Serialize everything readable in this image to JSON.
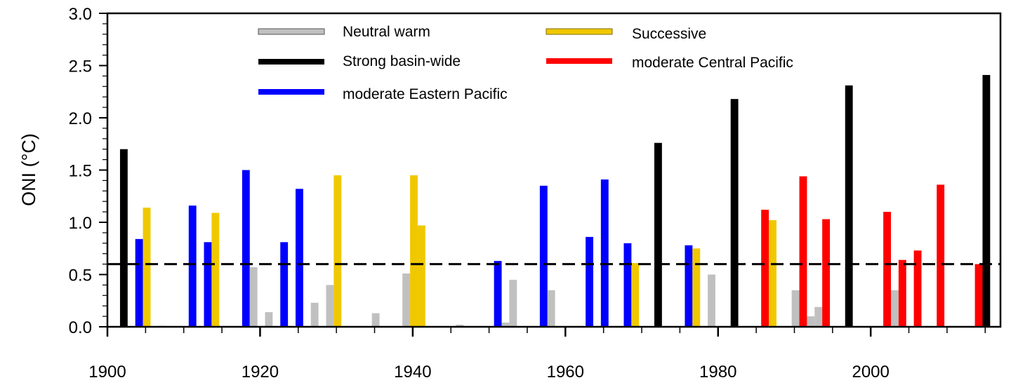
{
  "chart_data": {
    "type": "bar",
    "title": "",
    "xlabel": "",
    "ylabel": "ONI (°C)",
    "xlim": [
      1900,
      2017
    ],
    "ylim": [
      0,
      3.0
    ],
    "xticks": [
      1900,
      1920,
      1940,
      1960,
      1980,
      2000
    ],
    "yticks": [
      "0.0",
      "0.5",
      "1.0",
      "1.5",
      "2.0",
      "2.5",
      "3.0"
    ],
    "grid": false,
    "legend_placement": "top",
    "threshold": {
      "value": 0.6,
      "style": "dashed",
      "color": "#000000"
    },
    "categories": {
      "neutral": {
        "name": "Neutral warm",
        "color": "#c0c0c0"
      },
      "strong": {
        "name": "Strong basin-wide",
        "color": "#000000"
      },
      "ep": {
        "name": "moderate Eastern Pacific",
        "color": "#0000ff"
      },
      "successive": {
        "name": "Successive",
        "color": "#f0c800"
      },
      "cp": {
        "name": "moderate Central Pacific",
        "color": "#ff0000"
      }
    },
    "bars": [
      {
        "year": 1902,
        "value": 1.7,
        "cat": "strong"
      },
      {
        "year": 1904,
        "value": 0.84,
        "cat": "ep"
      },
      {
        "year": 1905,
        "value": 1.14,
        "cat": "successive"
      },
      {
        "year": 1907,
        "value": 0.01,
        "cat": "neutral"
      },
      {
        "year": 1911,
        "value": 1.16,
        "cat": "ep"
      },
      {
        "year": 1913,
        "value": 0.81,
        "cat": "ep"
      },
      {
        "year": 1914,
        "value": 1.09,
        "cat": "successive"
      },
      {
        "year": 1918,
        "value": 1.5,
        "cat": "ep"
      },
      {
        "year": 1919,
        "value": 0.57,
        "cat": "neutral"
      },
      {
        "year": 1921,
        "value": 0.14,
        "cat": "neutral"
      },
      {
        "year": 1923,
        "value": 0.81,
        "cat": "ep"
      },
      {
        "year": 1925,
        "value": 1.32,
        "cat": "ep"
      },
      {
        "year": 1927,
        "value": 0.23,
        "cat": "neutral"
      },
      {
        "year": 1929,
        "value": 0.4,
        "cat": "neutral"
      },
      {
        "year": 1930,
        "value": 1.45,
        "cat": "successive"
      },
      {
        "year": 1935,
        "value": 0.13,
        "cat": "neutral"
      },
      {
        "year": 1939,
        "value": 0.51,
        "cat": "neutral"
      },
      {
        "year": 1940,
        "value": 1.45,
        "cat": "successive"
      },
      {
        "year": 1941,
        "value": 0.97,
        "cat": "successive"
      },
      {
        "year": 1946,
        "value": 0.02,
        "cat": "neutral"
      },
      {
        "year": 1951,
        "value": 0.63,
        "cat": "ep"
      },
      {
        "year": 1952,
        "value": 0.04,
        "cat": "neutral"
      },
      {
        "year": 1953,
        "value": 0.45,
        "cat": "neutral"
      },
      {
        "year": 1957,
        "value": 1.35,
        "cat": "ep"
      },
      {
        "year": 1958,
        "value": 0.35,
        "cat": "neutral"
      },
      {
        "year": 1963,
        "value": 0.86,
        "cat": "ep"
      },
      {
        "year": 1965,
        "value": 1.41,
        "cat": "ep"
      },
      {
        "year": 1968,
        "value": 0.8,
        "cat": "ep"
      },
      {
        "year": 1969,
        "value": 0.61,
        "cat": "successive"
      },
      {
        "year": 1972,
        "value": 1.76,
        "cat": "strong"
      },
      {
        "year": 1976,
        "value": 0.78,
        "cat": "ep"
      },
      {
        "year": 1977,
        "value": 0.75,
        "cat": "successive"
      },
      {
        "year": 1979,
        "value": 0.5,
        "cat": "neutral"
      },
      {
        "year": 1982,
        "value": 2.18,
        "cat": "strong"
      },
      {
        "year": 1986,
        "value": 1.12,
        "cat": "cp"
      },
      {
        "year": 1987,
        "value": 1.02,
        "cat": "successive"
      },
      {
        "year": 1990,
        "value": 0.35,
        "cat": "neutral"
      },
      {
        "year": 1991,
        "value": 1.44,
        "cat": "cp"
      },
      {
        "year": 1992,
        "value": 0.1,
        "cat": "neutral"
      },
      {
        "year": 1993,
        "value": 0.19,
        "cat": "neutral"
      },
      {
        "year": 1994,
        "value": 1.03,
        "cat": "cp"
      },
      {
        "year": 1997,
        "value": 2.31,
        "cat": "strong"
      },
      {
        "year": 2002,
        "value": 1.1,
        "cat": "cp"
      },
      {
        "year": 2003,
        "value": 0.35,
        "cat": "neutral"
      },
      {
        "year": 2004,
        "value": 0.64,
        "cat": "cp"
      },
      {
        "year": 2006,
        "value": 0.73,
        "cat": "cp"
      },
      {
        "year": 2009,
        "value": 1.36,
        "cat": "cp"
      },
      {
        "year": 2014,
        "value": 0.6,
        "cat": "cp"
      },
      {
        "year": 2015,
        "value": 2.41,
        "cat": "strong"
      }
    ]
  }
}
